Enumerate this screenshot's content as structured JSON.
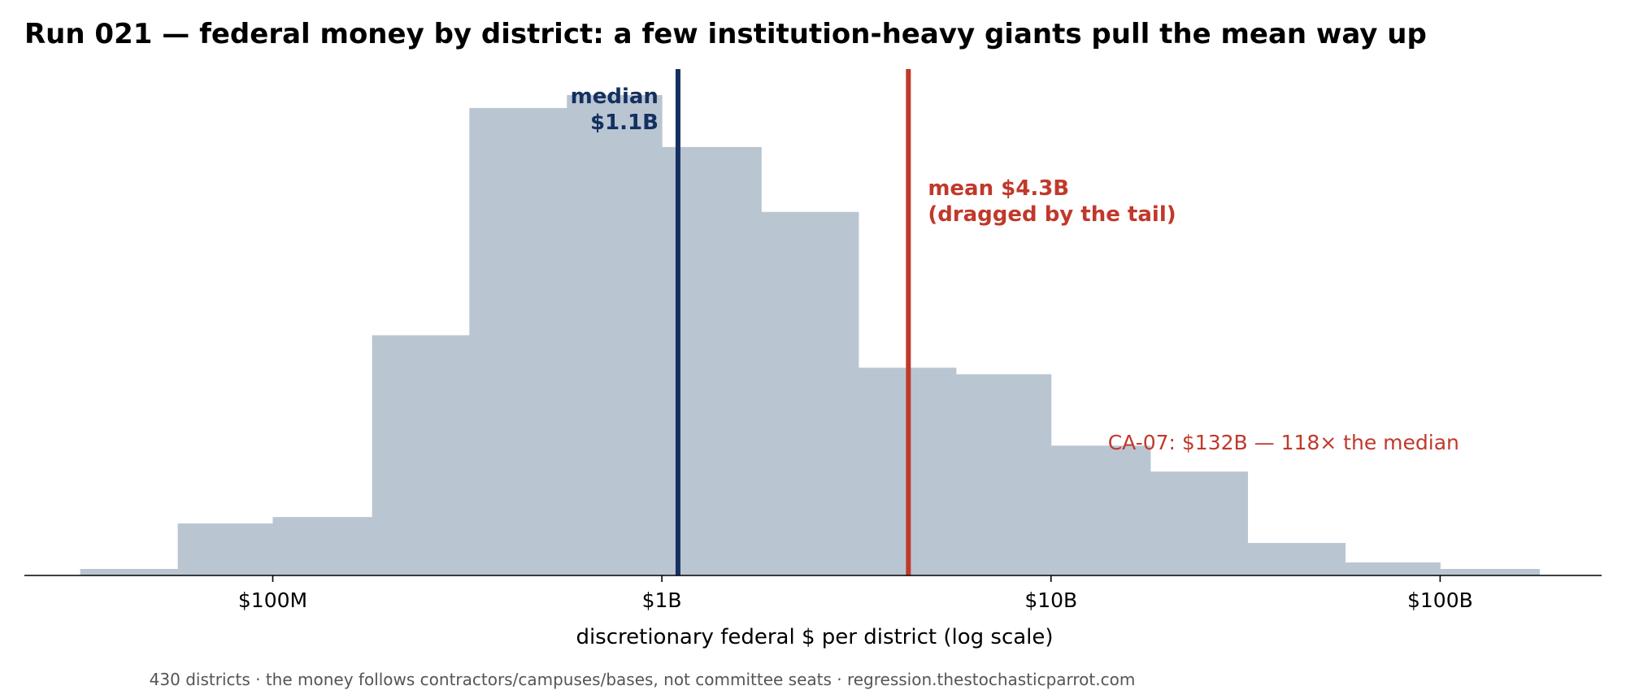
{
  "title": "Run 021 — federal money by district: a few institution-heavy giants pull the mean way up",
  "footer": "430 districts · the money follows contractors/campuses/bases, not committee seats · regression.thestochasticparrot.com",
  "colors": {
    "bars": "#bac5d2",
    "median": "#14305f",
    "mean": "#c0392b",
    "axis": "#000000",
    "footer": "#555555"
  },
  "chart_data": {
    "type": "bar",
    "title": "Run 021 — federal money by district: a few institution-heavy giants pull the mean way up",
    "xlabel": "discretionary federal $ per district (log scale)",
    "ylabel": "",
    "x_scale": "log",
    "xlim": [
      23000000,
      260000000000
    ],
    "ylim": [
      0,
      78
    ],
    "x_ticks": [
      {
        "value": 100000000,
        "label": "$100M"
      },
      {
        "value": 1000000000,
        "label": "$1B"
      },
      {
        "value": 10000000000,
        "label": "$10B"
      },
      {
        "value": 100000000000,
        "label": "$100B"
      }
    ],
    "bin_edges": [
      32000000,
      57000000,
      100000000,
      180000000,
      320000000,
      570000000,
      1000000000,
      1800000000,
      3200000000,
      5700000000,
      10000000000,
      18000000000,
      32000000000,
      57000000000,
      100000000000,
      180000000000
    ],
    "values": [
      1,
      8,
      9,
      37,
      72,
      74,
      66,
      56,
      32,
      31,
      20,
      16,
      5,
      2,
      1
    ],
    "grid": false,
    "legend": "none",
    "median": {
      "value": 1100000000,
      "label_line1": "median",
      "label_line2": "$1.1B"
    },
    "mean": {
      "value": 4300000000,
      "label_line1": "mean $4.3B",
      "label_line2": "(dragged by the tail)"
    },
    "annotation": {
      "x_value": 14000000000,
      "y_value": 20,
      "text": "CA-07: $132B — 118× the median"
    }
  }
}
